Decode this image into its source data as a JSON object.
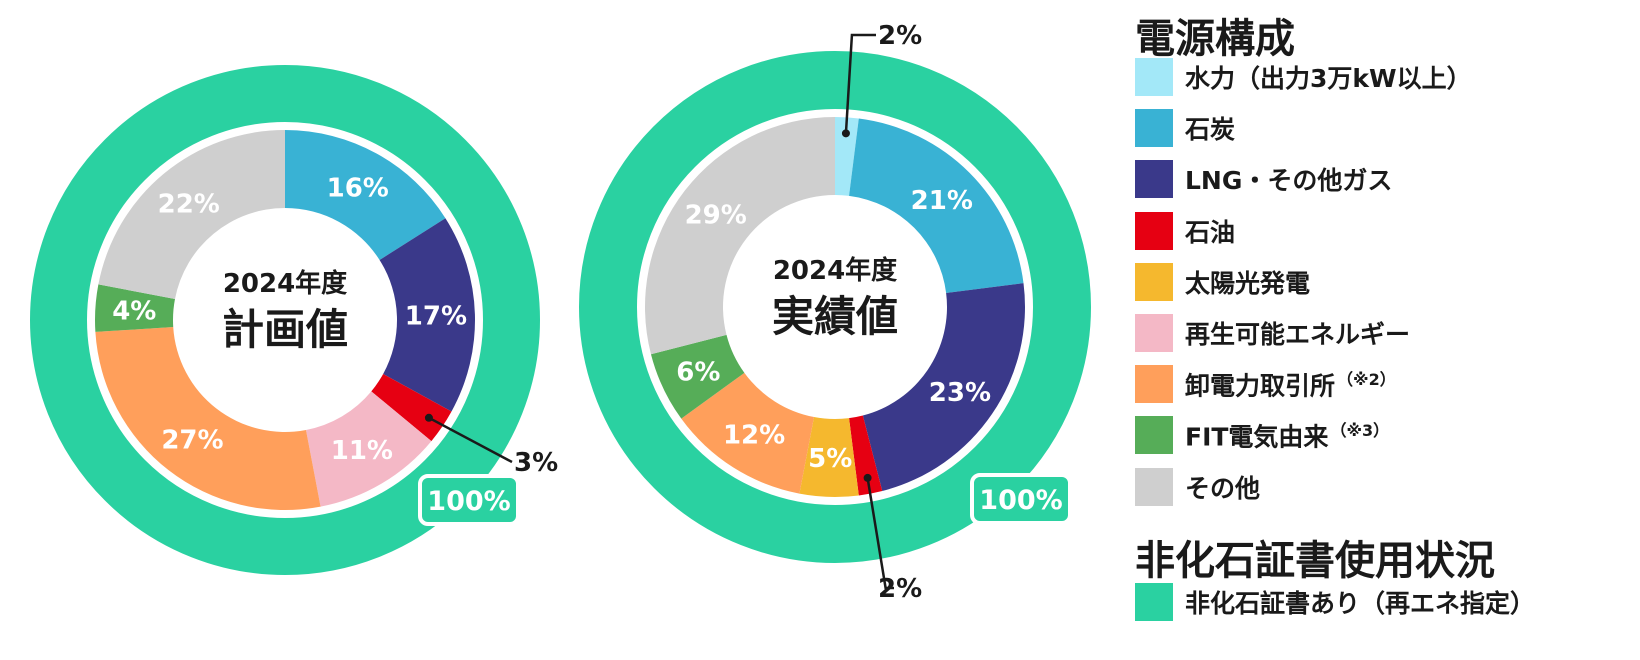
{
  "chart_data": [
    {
      "type": "donut",
      "center_label_top": "2024年度",
      "center_label_main": "計画値",
      "outer_ring": {
        "name": "非化石証書あり（再エネ指定）",
        "label": "100%",
        "value": 100
      },
      "slices": [
        {
          "category": "水力（出力3万kW以上）",
          "value": 0,
          "label": ""
        },
        {
          "category": "石炭",
          "value": 16,
          "label": "16%"
        },
        {
          "category": "LNG・その他ガス",
          "value": 17,
          "label": "17%"
        },
        {
          "category": "石油",
          "value": 3,
          "label": "3%"
        },
        {
          "category": "太陽光発電",
          "value": 0,
          "label": ""
        },
        {
          "category": "再生可能エネルギー",
          "value": 11,
          "label": "11%"
        },
        {
          "category": "卸電力取引所",
          "value": 27,
          "label": "27%"
        },
        {
          "category": "FIT電気由来",
          "value": 4,
          "label": "4%"
        },
        {
          "category": "その他",
          "value": 22,
          "label": "22%"
        }
      ]
    },
    {
      "type": "donut",
      "center_label_top": "2024年度",
      "center_label_main": "実績値",
      "outer_ring": {
        "name": "非化石証書あり（再エネ指定）",
        "label": "100%",
        "value": 100
      },
      "slices": [
        {
          "category": "水力（出力3万kW以上）",
          "value": 2,
          "label": "2%"
        },
        {
          "category": "石炭",
          "value": 21,
          "label": "21%"
        },
        {
          "category": "LNG・その他ガス",
          "value": 23,
          "label": "23%"
        },
        {
          "category": "石油",
          "value": 2,
          "label": "2%"
        },
        {
          "category": "太陽光発電",
          "value": 5,
          "label": "5%"
        },
        {
          "category": "再生可能エネルギー",
          "value": 0,
          "label": ""
        },
        {
          "category": "卸電力取引所",
          "value": 12,
          "label": "12%"
        },
        {
          "category": "FIT電気由来",
          "value": 6,
          "label": "6%"
        },
        {
          "category": "その他",
          "value": 29,
          "label": "29%"
        }
      ]
    }
  ],
  "legend": {
    "composition_title": "電源構成",
    "items": [
      {
        "label": "水力（出力3万kW以上）",
        "note": "",
        "color": "#a3e8f8"
      },
      {
        "label": "石炭",
        "note": "",
        "color": "#39b2d4"
      },
      {
        "label": "LNG・その他ガス",
        "note": "",
        "color": "#3a398a"
      },
      {
        "label": "石油",
        "note": "",
        "color": "#e60012"
      },
      {
        "label": "太陽光発電",
        "note": "",
        "color": "#f5b82e"
      },
      {
        "label": "再生可能エネルギー",
        "note": "",
        "color": "#f4b8c6"
      },
      {
        "label": "卸電力取引所",
        "note": "（※2）",
        "color": "#ff9f5b"
      },
      {
        "label": "FIT電気由来",
        "note": "（※3）",
        "color": "#56ad58"
      },
      {
        "label": "その他",
        "note": "",
        "color": "#cfcfcf"
      }
    ],
    "certificate_title": "非化石証書使用状況",
    "certificate_item": {
      "label": "非化石証書あり（再エネ指定）",
      "color": "#2ad1a1"
    }
  }
}
